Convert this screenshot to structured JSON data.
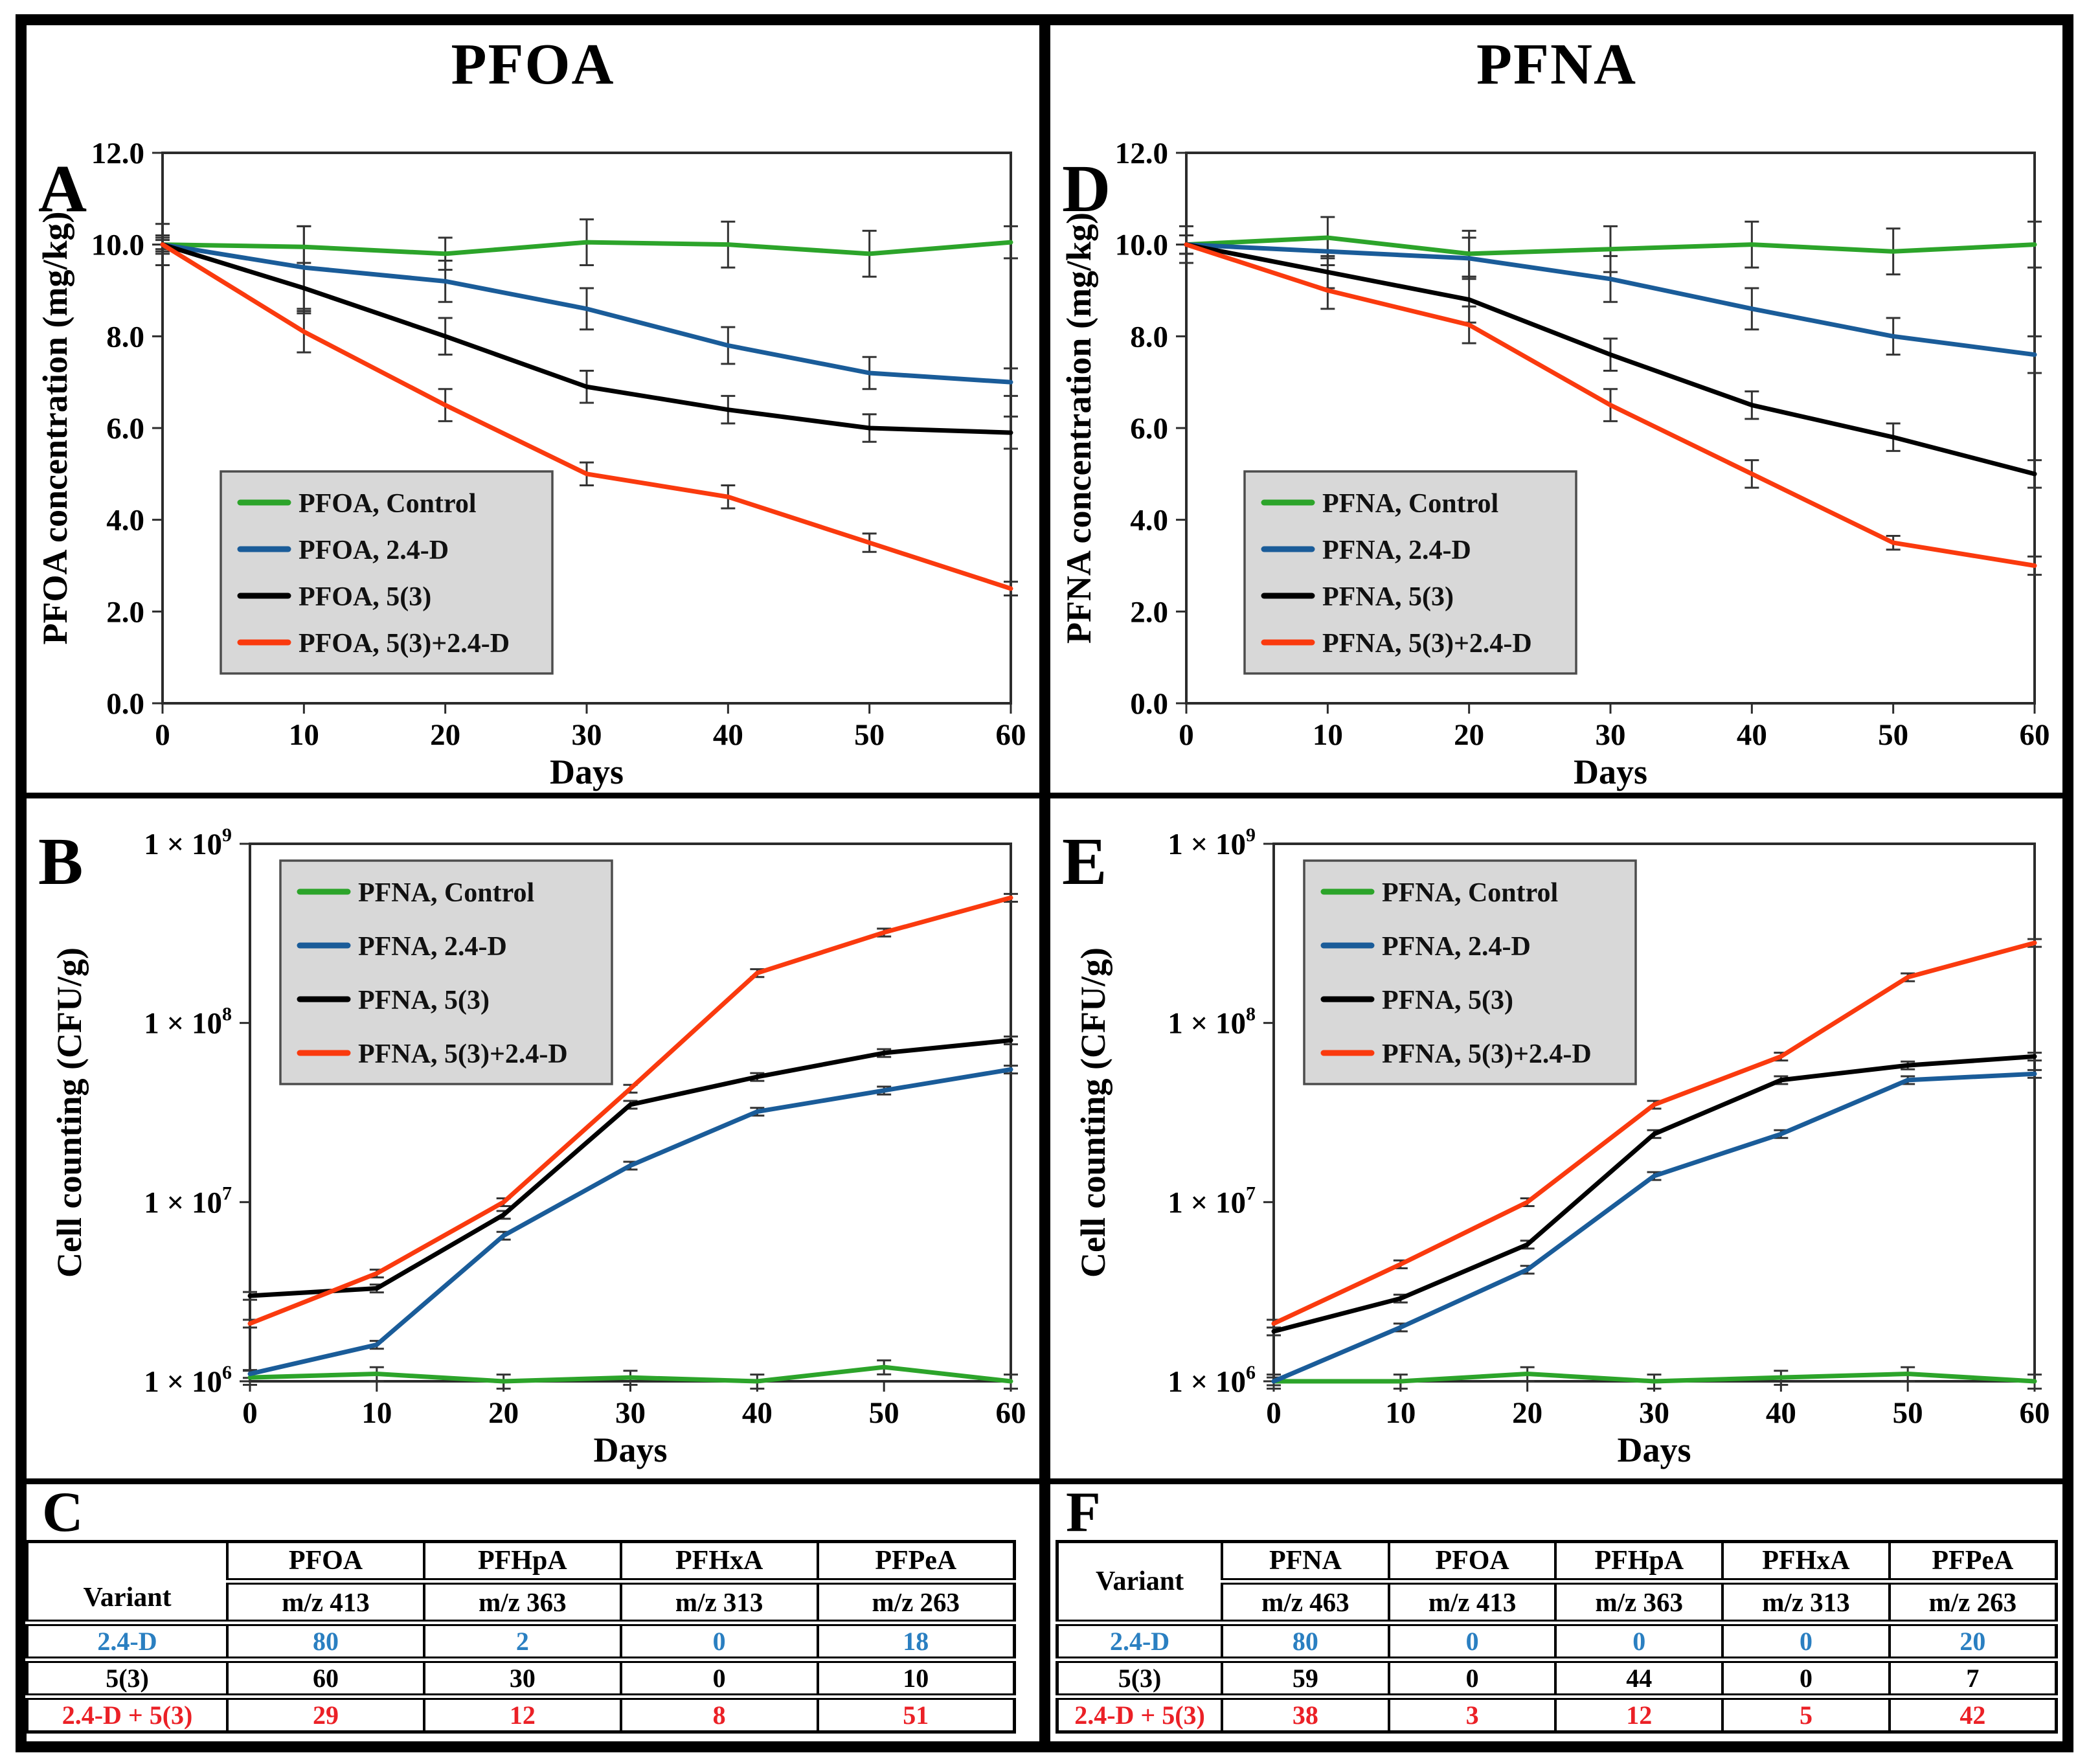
{
  "figure": {
    "columns": [
      {
        "title": "PFOA",
        "panel_letters": [
          "A",
          "B",
          "C"
        ]
      },
      {
        "title": "PFNA",
        "panel_letters": [
          "D",
          "E",
          "F"
        ]
      }
    ]
  },
  "colors": {
    "green": "#2CA42A",
    "blue": "#1A5C99",
    "black": "#000000",
    "red": "#FA3A0E",
    "table_blue": "#2A7FC1",
    "table_red": "#EB2026",
    "legend_bg": "#D8D8D8",
    "legend_border": "#4D4D4D",
    "axis": "#2B2B2B",
    "error_bar": "#333333"
  },
  "chart_data": [
    {
      "id": "A",
      "type": "line",
      "letter": "A",
      "ylabel": "PFOA concentration (mg/kg)",
      "xlabel": "Days",
      "yscale": "linear",
      "ylim": [
        0,
        12
      ],
      "xlim": [
        0,
        60
      ],
      "grid": false,
      "legend_position": "lower-left-inside",
      "yticks": [
        {
          "v": 0,
          "label": "0.0"
        },
        {
          "v": 2,
          "label": "2.0"
        },
        {
          "v": 4,
          "label": "4.0"
        },
        {
          "v": 6,
          "label": "6.0"
        },
        {
          "v": 8,
          "label": "8.0"
        },
        {
          "v": 10,
          "label": "10.0"
        },
        {
          "v": 12,
          "label": "12.0"
        }
      ],
      "x": [
        0,
        10,
        20,
        30,
        40,
        50,
        60
      ],
      "x_ticks": [
        0,
        10,
        20,
        30,
        40,
        50,
        60
      ],
      "series": [
        {
          "name": "PFOA, Control",
          "color_key": "green",
          "values": [
            10.0,
            9.95,
            9.8,
            10.05,
            10.0,
            9.8,
            10.05
          ],
          "err": [
            0.45,
            0.45,
            0.35,
            0.5,
            0.5,
            0.5,
            0.35
          ]
        },
        {
          "name": "PFOA, 2.4-D",
          "color_key": "blue",
          "values": [
            10.0,
            9.5,
            9.2,
            8.6,
            7.8,
            7.2,
            7.0
          ],
          "err": [
            0.2,
            0.9,
            0.45,
            0.45,
            0.4,
            0.35,
            0.3
          ]
        },
        {
          "name": "PFOA, 5(3)",
          "color_key": "black",
          "values": [
            10.0,
            9.05,
            8.0,
            6.9,
            6.4,
            6.0,
            5.9
          ],
          "err": [
            0.15,
            0.55,
            0.4,
            0.35,
            0.3,
            0.3,
            0.35
          ]
        },
        {
          "name": "PFOA, 5(3)+2.4-D",
          "color_key": "red",
          "values": [
            10.0,
            8.1,
            6.5,
            5.0,
            4.5,
            3.5,
            2.5
          ],
          "err": [
            0.1,
            0.45,
            0.35,
            0.25,
            0.25,
            0.2,
            0.15
          ]
        }
      ]
    },
    {
      "id": "B",
      "type": "line",
      "letter": "B",
      "ylabel": "Cell counting (CFU/g)",
      "xlabel": "Days",
      "yscale": "log",
      "ylim": [
        1000000,
        1000000000
      ],
      "xlim": [
        0,
        60
      ],
      "grid": false,
      "legend_position": "upper-left-inside",
      "ytick_mantissa": "1 × 10",
      "yticks": [
        {
          "v": 1000000,
          "exp": "6"
        },
        {
          "v": 10000000,
          "exp": "7"
        },
        {
          "v": 100000000,
          "exp": "8"
        },
        {
          "v": 1000000000,
          "exp": "9"
        }
      ],
      "x": [
        0,
        10,
        20,
        30,
        40,
        50,
        60
      ],
      "x_ticks": [
        0,
        10,
        20,
        30,
        40,
        50,
        60
      ],
      "series": [
        {
          "name": "PFNA, Control",
          "color_key": "green",
          "err_frac": 0.09,
          "values": [
            1050000.0,
            1100000.0,
            1000000.0,
            1050000.0,
            1000000.0,
            1200000.0,
            1000000.0
          ]
        },
        {
          "name": "PFNA, 2.4-D",
          "color_key": "blue",
          "err_frac": 0.05,
          "values": [
            1100000.0,
            1600000.0,
            6500000.0,
            16000000.0,
            32000000.0,
            42000000.0,
            55000000.0
          ]
        },
        {
          "name": "PFNA, 5(3)",
          "color_key": "black",
          "err_frac": 0.05,
          "values": [
            3000000.0,
            3300000.0,
            8500000.0,
            35000000.0,
            50000000.0,
            68000000.0,
            80000000.0
          ]
        },
        {
          "name": "PFNA, 5(3)+2.4-D",
          "color_key": "red",
          "err_frac": 0.05,
          "values": [
            2100000.0,
            4000000.0,
            10000000.0,
            43000000.0,
            190000000.0,
            320000000.0,
            500000000.0
          ]
        }
      ]
    },
    {
      "id": "D",
      "type": "line",
      "letter": "D",
      "ylabel": "PFNA concentration (mg/kg)",
      "xlabel": "Days",
      "yscale": "linear",
      "ylim": [
        0,
        12
      ],
      "xlim": [
        0,
        60
      ],
      "grid": false,
      "legend_position": "lower-left-inside",
      "yticks": [
        {
          "v": 0,
          "label": "0.0"
        },
        {
          "v": 2,
          "label": "2.0"
        },
        {
          "v": 4,
          "label": "4.0"
        },
        {
          "v": 6,
          "label": "6.0"
        },
        {
          "v": 8,
          "label": "8.0"
        },
        {
          "v": 10,
          "label": "10.0"
        },
        {
          "v": 12,
          "label": "12.0"
        }
      ],
      "x": [
        0,
        10,
        20,
        30,
        40,
        50,
        60
      ],
      "x_ticks": [
        0,
        10,
        20,
        30,
        40,
        50,
        60
      ],
      "series": [
        {
          "name": "PFNA, Control",
          "color_key": "green",
          "values": [
            10.0,
            10.15,
            9.8,
            9.9,
            10.0,
            9.85,
            10.0
          ],
          "err": [
            0.4,
            0.45,
            0.5,
            0.5,
            0.5,
            0.5,
            0.5
          ]
        },
        {
          "name": "PFNA, 2.4-D",
          "color_key": "blue",
          "values": [
            10.0,
            9.85,
            9.7,
            9.25,
            8.6,
            8.0,
            7.6
          ],
          "err": [
            0.2,
            0.3,
            0.45,
            0.5,
            0.45,
            0.4,
            0.4
          ]
        },
        {
          "name": "PFNA, 5(3)",
          "color_key": "black",
          "values": [
            10.0,
            9.4,
            8.8,
            7.6,
            6.5,
            5.8,
            5.0
          ],
          "err": [
            0.2,
            0.35,
            0.5,
            0.35,
            0.3,
            0.3,
            0.3
          ]
        },
        {
          "name": "PFNA, 5(3)+2.4-D",
          "color_key": "red",
          "values": [
            10.0,
            9.0,
            8.25,
            6.5,
            5.0,
            3.5,
            3.0
          ],
          "err": [
            0.2,
            0.4,
            0.4,
            0.35,
            0.3,
            0.15,
            0.2
          ]
        }
      ]
    },
    {
      "id": "E",
      "type": "line",
      "letter": "E",
      "ylabel": "Cell counting (CFU/g)",
      "xlabel": "Days",
      "yscale": "log",
      "ylim": [
        1000000,
        1000000000
      ],
      "xlim": [
        0,
        60
      ],
      "grid": false,
      "legend_position": "upper-left-inside",
      "ytick_mantissa": "1 × 10",
      "yticks": [
        {
          "v": 1000000,
          "exp": "6"
        },
        {
          "v": 10000000,
          "exp": "7"
        },
        {
          "v": 100000000,
          "exp": "8"
        },
        {
          "v": 1000000000,
          "exp": "9"
        }
      ],
      "x": [
        0,
        10,
        20,
        30,
        40,
        50,
        60
      ],
      "x_ticks": [
        0,
        10,
        20,
        30,
        40,
        50,
        60
      ],
      "series": [
        {
          "name": "PFNA, Control",
          "color_key": "green",
          "err_frac": 0.09,
          "values": [
            1000000.0,
            1000000.0,
            1100000.0,
            1000000.0,
            1050000.0,
            1100000.0,
            1000000.0
          ]
        },
        {
          "name": "PFNA, 2.4-D",
          "color_key": "blue",
          "err_frac": 0.05,
          "values": [
            1000000.0,
            2000000.0,
            4200000.0,
            14000000.0,
            24000000.0,
            48000000.0,
            52000000.0
          ]
        },
        {
          "name": "PFNA, 5(3)",
          "color_key": "black",
          "err_frac": 0.05,
          "values": [
            1900000.0,
            2900000.0,
            5800000.0,
            24000000.0,
            48000000.0,
            58000000.0,
            65000000.0
          ]
        },
        {
          "name": "PFNA, 5(3)+2.4-D",
          "color_key": "red",
          "err_frac": 0.05,
          "values": [
            2100000.0,
            4500000.0,
            10000000.0,
            35000000.0,
            65000000.0,
            180000000.0,
            280000000.0
          ]
        }
      ]
    },
    {
      "id": "C",
      "type": "table",
      "letter": "C",
      "variant_header": "Variant",
      "columns": [
        {
          "name": "PFOA",
          "mz": "m/z 413"
        },
        {
          "name": "PFHpA",
          "mz": "m/z 363"
        },
        {
          "name": "PFHxA",
          "mz": "m/z 313"
        },
        {
          "name": "PFPeA",
          "mz": "m/z 263"
        }
      ],
      "rows": [
        {
          "variant": "2.4-D",
          "color_key": "table_blue",
          "values": [
            "80",
            "2",
            "0",
            "18"
          ]
        },
        {
          "variant": "5(3)",
          "color_key": "black",
          "values": [
            "60",
            "30",
            "0",
            "10"
          ]
        },
        {
          "variant": "2.4-D + 5(3)",
          "color_key": "table_red",
          "values": [
            "29",
            "12",
            "8",
            "51"
          ]
        }
      ]
    },
    {
      "id": "F",
      "type": "table",
      "letter": "F",
      "variant_header": "Variant",
      "columns": [
        {
          "name": "PFNA",
          "mz": "m/z 463"
        },
        {
          "name": "PFOA",
          "mz": "m/z 413"
        },
        {
          "name": "PFHpA",
          "mz": "m/z 363"
        },
        {
          "name": "PFHxA",
          "mz": "m/z 313"
        },
        {
          "name": "PFPeA",
          "mz": "m/z 263"
        }
      ],
      "rows": [
        {
          "variant": "2.4-D",
          "color_key": "table_blue",
          "values": [
            "80",
            "0",
            "0",
            "0",
            "20"
          ]
        },
        {
          "variant": "5(3)",
          "color_key": "black",
          "values": [
            "59",
            "0",
            "44",
            "0",
            "7"
          ]
        },
        {
          "variant": "2.4-D + 5(3)",
          "color_key": "table_red",
          "values": [
            "38",
            "3",
            "12",
            "5",
            "42"
          ]
        }
      ]
    }
  ]
}
